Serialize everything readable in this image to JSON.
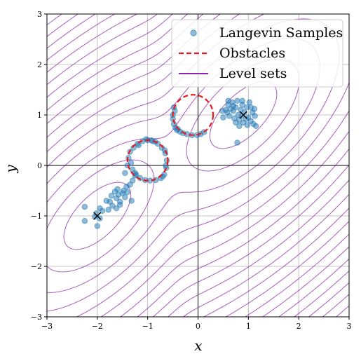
{
  "chart_data": {
    "type": "scatter",
    "xlabel": "x",
    "ylabel": "y",
    "xlim": [
      -3,
      3
    ],
    "ylim": [
      -3,
      3
    ],
    "x_ticks": [
      -3,
      -2,
      -1,
      0,
      1,
      2,
      3
    ],
    "y_ticks": [
      -3,
      -2,
      -1,
      0,
      1,
      2,
      3
    ],
    "x_tick_labels": [
      "−3",
      "−2",
      "−1",
      "0",
      "1",
      "2",
      "3"
    ],
    "y_tick_labels": [
      "−3",
      "−2",
      "−1",
      "0",
      "1",
      "2",
      "3"
    ],
    "grid": true,
    "legend": {
      "placement": "top-right",
      "entries": [
        {
          "label": "Langevin Samples",
          "kind": "marker",
          "color": "#1f77b4"
        },
        {
          "label": "Obstacles",
          "kind": "dashed-line",
          "color": "#e41a1c"
        },
        {
          "label": "Level sets",
          "kind": "line",
          "color": "#8e24aa"
        }
      ]
    },
    "colors": {
      "samples": "#1f77b4",
      "obstacles": "#e41a1c",
      "level_sets": "#8e24aa",
      "axis_lines": "#000000",
      "grid": "#b0b0b0"
    },
    "obstacles": [
      {
        "center": [
          -1.0,
          0.1
        ],
        "radius": 0.4
      },
      {
        "center": [
          -0.1,
          1.0
        ],
        "radius": 0.4
      }
    ],
    "goals": [
      {
        "x": -2.0,
        "y": -1.0,
        "marker": "x"
      },
      {
        "x": 0.9,
        "y": 1.0,
        "marker": "x"
      }
    ],
    "series": [
      {
        "name": "Langevin Samples",
        "points": [
          [
            -2.25,
            -1.1
          ],
          [
            -2.25,
            -0.82
          ],
          [
            -2.05,
            -1.02
          ],
          [
            -2.02,
            -0.95
          ],
          [
            -1.95,
            -1.05
          ],
          [
            -2.0,
            -1.2
          ],
          [
            -1.95,
            -0.85
          ],
          [
            -1.9,
            -0.9
          ],
          [
            -1.82,
            -0.7
          ],
          [
            -1.75,
            -0.72
          ],
          [
            -1.78,
            -0.88
          ],
          [
            -1.72,
            -0.6
          ],
          [
            -1.65,
            -0.52
          ],
          [
            -1.62,
            -0.65
          ],
          [
            -1.58,
            -0.58
          ],
          [
            -1.55,
            -0.72
          ],
          [
            -1.5,
            -0.55
          ],
          [
            -1.48,
            -0.5
          ],
          [
            -1.45,
            -0.63
          ],
          [
            -1.42,
            -0.42
          ],
          [
            -1.4,
            -0.53
          ],
          [
            -1.35,
            -0.38
          ],
          [
            -1.3,
            -0.3
          ],
          [
            -1.25,
            -0.2
          ],
          [
            -1.55,
            -0.78
          ],
          [
            -1.62,
            -0.85
          ],
          [
            -1.7,
            -0.8
          ],
          [
            -1.32,
            -0.7
          ],
          [
            -1.6,
            -0.47
          ],
          [
            -1.45,
            -0.15
          ],
          [
            -1.4,
            0.0
          ],
          [
            -1.38,
            0.15
          ],
          [
            -1.35,
            0.27
          ],
          [
            -1.28,
            0.35
          ],
          [
            -1.2,
            0.43
          ],
          [
            -1.1,
            0.48
          ],
          [
            -1.0,
            0.5
          ],
          [
            -0.9,
            0.48
          ],
          [
            -0.8,
            0.43
          ],
          [
            -0.72,
            0.35
          ],
          [
            -0.65,
            0.24
          ],
          [
            -0.62,
            0.1
          ],
          [
            -0.63,
            -0.05
          ],
          [
            -0.67,
            -0.18
          ],
          [
            -0.74,
            -0.25
          ],
          [
            -0.84,
            -0.29
          ],
          [
            -0.95,
            -0.3
          ],
          [
            -1.05,
            -0.29
          ],
          [
            -1.15,
            -0.25
          ],
          [
            -1.23,
            -0.18
          ],
          [
            -1.3,
            -0.08
          ],
          [
            -1.33,
            0.05
          ],
          [
            -1.03,
            0.52
          ],
          [
            -0.85,
            0.47
          ],
          [
            -0.66,
            0.3
          ],
          [
            -1.25,
            -0.15
          ],
          [
            -0.7,
            -0.22
          ],
          [
            -1.18,
            0.4
          ],
          [
            -0.93,
            0.5
          ],
          [
            -0.64,
            0.0
          ],
          [
            -0.5,
            1.0
          ],
          [
            -0.48,
            0.82
          ],
          [
            -0.48,
            1.15
          ],
          [
            -0.45,
            0.75
          ],
          [
            -0.42,
            0.7
          ],
          [
            -0.36,
            0.67
          ],
          [
            -0.3,
            0.64
          ],
          [
            -0.22,
            0.62
          ],
          [
            -0.12,
            0.6
          ],
          [
            -0.02,
            0.6
          ],
          [
            0.05,
            0.62
          ],
          [
            0.12,
            0.66
          ],
          [
            -0.5,
            0.92
          ],
          [
            -0.46,
            1.08
          ],
          [
            -0.4,
            0.72
          ],
          [
            0.48,
            1.08
          ],
          [
            0.5,
            0.95
          ],
          [
            0.55,
            1.1
          ],
          [
            0.58,
            1.05
          ],
          [
            0.6,
            1.2
          ],
          [
            0.62,
            0.98
          ],
          [
            0.65,
            1.12
          ],
          [
            0.68,
            1.25
          ],
          [
            0.7,
            1.08
          ],
          [
            0.72,
            0.93
          ],
          [
            0.75,
            1.15
          ],
          [
            0.78,
            1.28
          ],
          [
            0.8,
            1.0
          ],
          [
            0.82,
            0.9
          ],
          [
            0.85,
            1.1
          ],
          [
            0.87,
            0.98
          ],
          [
            0.88,
            1.2
          ],
          [
            0.9,
            0.85
          ],
          [
            0.92,
            1.05
          ],
          [
            0.95,
            0.92
          ],
          [
            0.97,
            1.15
          ],
          [
            1.0,
            0.95
          ],
          [
            1.02,
            1.25
          ],
          [
            1.05,
            0.88
          ],
          [
            1.08,
            1.05
          ],
          [
            1.1,
            0.82
          ],
          [
            1.12,
            1.12
          ],
          [
            1.15,
            0.78
          ],
          [
            0.82,
            0.78
          ],
          [
            0.75,
            0.85
          ],
          [
            0.88,
            1.28
          ],
          [
            1.05,
            1.15
          ],
          [
            0.7,
            1.18
          ],
          [
            0.6,
            1.28
          ],
          [
            0.98,
            0.8
          ],
          [
            1.13,
            0.98
          ],
          [
            0.78,
            0.45
          ]
        ]
      }
    ],
    "level_sets": {
      "type": "contour",
      "count": 20,
      "description": "Quadratic-like bowls around the two goals, stretched along the diagonal"
    }
  }
}
